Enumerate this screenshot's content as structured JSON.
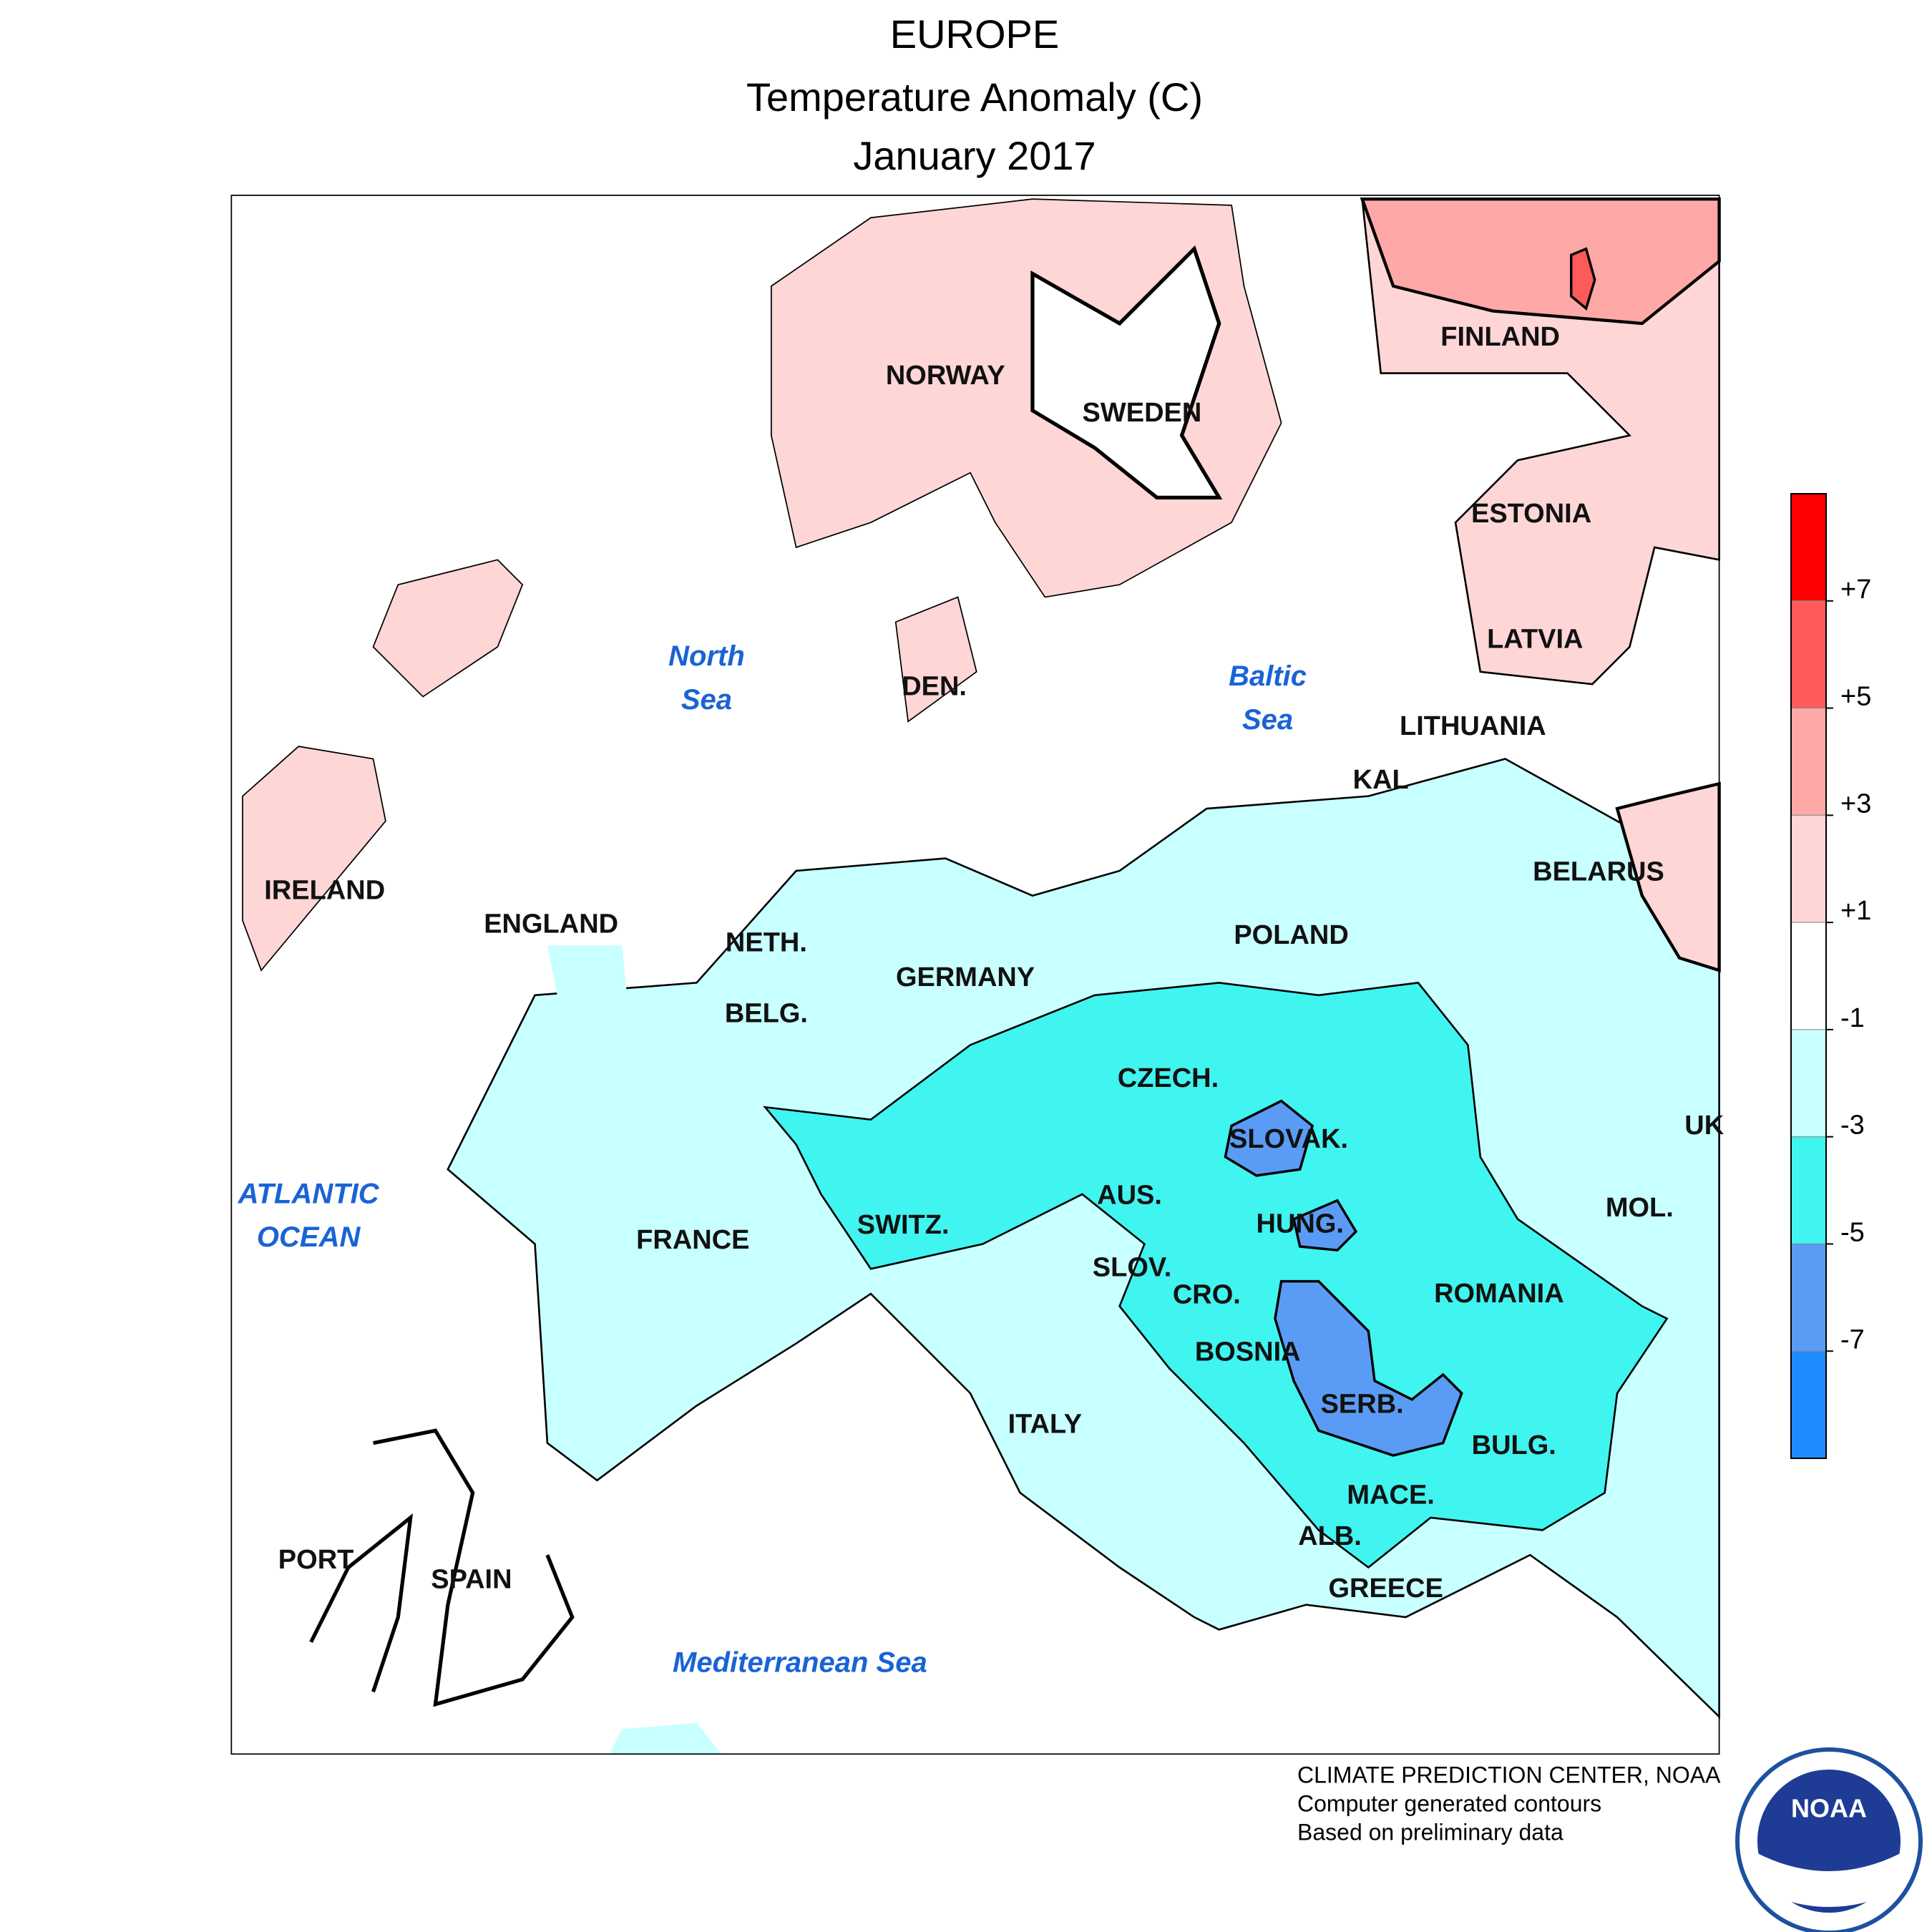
{
  "header": {
    "title": "EUROPE",
    "subtitle": "Temperature Anomaly (C)",
    "date": "January 2017"
  },
  "labels": {
    "countries": [
      "NORWAY",
      "SWEDEN",
      "FINLAND",
      "ESTONIA",
      "LATVIA",
      "LITHUANIA",
      "KAL",
      "BELARUS",
      "POLAND",
      "GERMANY",
      "NETH.",
      "BELG.",
      "DEN.",
      "IRELAND",
      "ENGLAND",
      "FRANCE",
      "SWITZ.",
      "AUS.",
      "CZECH.",
      "SLOVAK.",
      "HUNG.",
      "SLOV.",
      "CRO.",
      "BOSNIA",
      "SERB.",
      "ROMANIA",
      "MOL.",
      "UK",
      "BULG.",
      "MACE.",
      "ALB.",
      "GREECE",
      "ITALY",
      "PORT",
      "SPAIN"
    ],
    "seas": [
      [
        "North",
        "Sea"
      ],
      [
        "Baltic",
        "Sea"
      ],
      [
        "ATLANTIC",
        "OCEAN"
      ],
      [
        "Mediterranean Sea"
      ]
    ]
  },
  "legend": {
    "ticks": [
      {
        "value": 7,
        "label": "+7"
      },
      {
        "value": 5,
        "label": "+5"
      },
      {
        "value": 3,
        "label": "+3"
      },
      {
        "value": 1,
        "label": "+1"
      },
      -1,
      -3,
      -5,
      -7
    ],
    "colors": [
      "#ff0000",
      "#ff5a5a",
      "#ffa8a8",
      "#ffd6d6",
      "#ffffff",
      "#c8ffff",
      "#40f4f0",
      "#5a9cf5",
      "#1e8cff"
    ]
  },
  "footer": {
    "lines": [
      "CLIMATE PREDICTION CENTER, NOAA",
      "Computer generated contours",
      "Based on preliminary data"
    ],
    "logo": "NOAA"
  }
}
